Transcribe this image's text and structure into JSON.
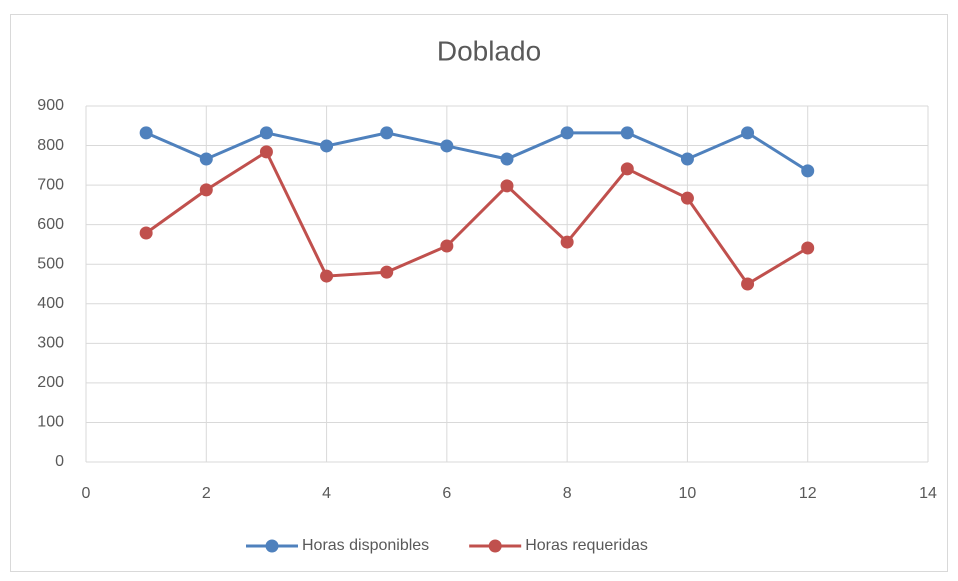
{
  "chart_data": {
    "type": "line",
    "title": "Doblado",
    "x": [
      1,
      2,
      3,
      4,
      5,
      6,
      7,
      8,
      9,
      10,
      11,
      12
    ],
    "series": [
      {
        "name": "Horas disponibles",
        "color": "#4f81bd",
        "values": [
          832,
          766,
          832,
          799,
          832,
          799,
          766,
          832,
          832,
          766,
          832,
          736
        ]
      },
      {
        "name": "Horas requeridas",
        "color": "#c0504d",
        "values": [
          579,
          688,
          784,
          470,
          480,
          546,
          698,
          556,
          741,
          667,
          450,
          541
        ]
      }
    ],
    "xlim": [
      0,
      14
    ],
    "xticks": [
      0,
      2,
      4,
      6,
      8,
      10,
      12,
      14
    ],
    "ylim": [
      0,
      900
    ],
    "yticks": [
      0,
      100,
      200,
      300,
      400,
      500,
      600,
      700,
      800,
      900
    ],
    "grid": true,
    "legend": "bottom"
  }
}
